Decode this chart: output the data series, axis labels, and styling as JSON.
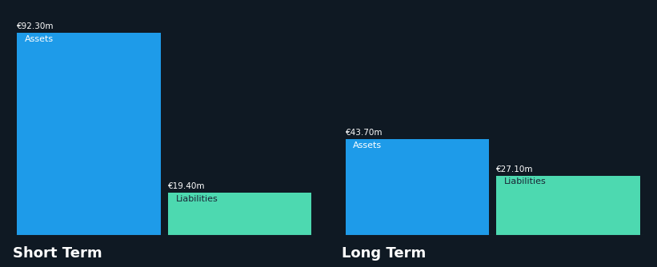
{
  "background_color": "#0f1923",
  "groups": [
    {
      "label": "Short Term",
      "bars": [
        {
          "name": "Assets",
          "value": 92.3,
          "color": "#1e9be9",
          "label_color": "#ffffff"
        },
        {
          "name": "Liabilities",
          "value": 19.4,
          "color": "#4dd9b0",
          "label_color": "#1a2535"
        }
      ]
    },
    {
      "label": "Long Term",
      "bars": [
        {
          "name": "Assets",
          "value": 43.7,
          "color": "#1e9be9",
          "label_color": "#ffffff"
        },
        {
          "name": "Liabilities",
          "value": 27.1,
          "color": "#4dd9b0",
          "label_color": "#1a2535"
        }
      ]
    }
  ],
  "value_label_color": "#ffffff",
  "group_label_color": "#ffffff",
  "value_label_fontsize": 7.5,
  "bar_label_fontsize": 8,
  "group_label_fontsize": 13,
  "max_value": 100,
  "separator_color": "#3a4a5a",
  "separator_linewidth": 0.8
}
